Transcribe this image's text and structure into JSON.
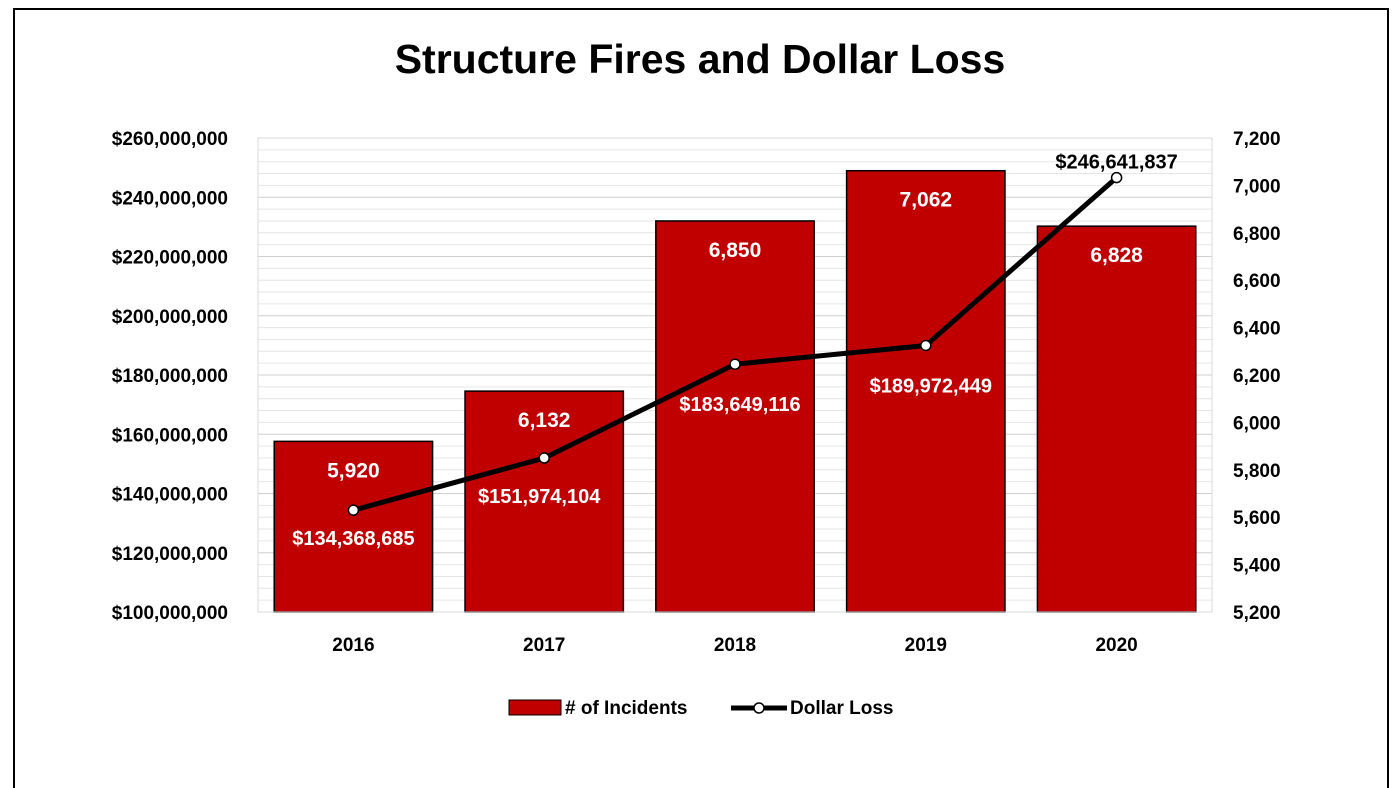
{
  "chart_data": {
    "type": "bar",
    "title": "Structure Fires and Dollar Loss",
    "categories": [
      "2016",
      "2017",
      "2018",
      "2019",
      "2020"
    ],
    "series": [
      {
        "name": "# of Incidents",
        "type": "bar",
        "axis": "right",
        "values": [
          5920,
          6132,
          6850,
          7062,
          6828
        ],
        "labels": [
          "5,920",
          "6,132",
          "6,850",
          "7,062",
          "6,828"
        ]
      },
      {
        "name": "Dollar Loss",
        "type": "line",
        "axis": "left",
        "values": [
          134368685,
          151974104,
          183649116,
          189972449,
          246641837
        ],
        "labels": [
          "$134,368,685",
          "$151,974,104",
          "$183,649,116",
          "$189,972,449",
          "$246,641,837"
        ]
      }
    ],
    "y_left": {
      "range": [
        100000000,
        260000000
      ],
      "ticks": [
        "$100,000,000",
        "$120,000,000",
        "$140,000,000",
        "$160,000,000",
        "$180,000,000",
        "$200,000,000",
        "$220,000,000",
        "$240,000,000",
        "$260,000,000"
      ]
    },
    "y_right": {
      "range": [
        5200,
        7200
      ],
      "ticks": [
        "5,200",
        "5,400",
        "5,600",
        "5,800",
        "6,000",
        "6,200",
        "6,400",
        "6,600",
        "6,800",
        "7,000",
        "7,200"
      ]
    },
    "grid": true,
    "legend": "bottom-center",
    "colors": {
      "bar": "#c00000",
      "line": "#000000"
    }
  }
}
